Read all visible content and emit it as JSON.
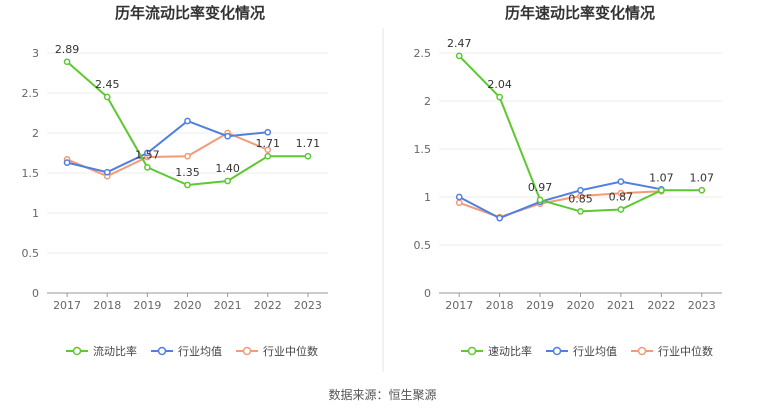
{
  "source": "数据来源：恒生聚源",
  "colors": {
    "primary": "#5DC832",
    "industry_avg": "#4F7FDF",
    "industry_median": "#F39A77"
  },
  "chart_data": [
    {
      "type": "line",
      "title": "历年流动比率变化情况",
      "categories": [
        "2017",
        "2018",
        "2019",
        "2020",
        "2021",
        "2022",
        "2023"
      ],
      "ylim": [
        0,
        3
      ],
      "yticks": [
        "0",
        "0.5",
        "1",
        "1.5",
        "2",
        "2.5",
        "3"
      ],
      "legend_position": "bottom",
      "series": [
        {
          "name": "流动比率",
          "values": [
            2.89,
            2.45,
            1.57,
            1.35,
            1.4,
            1.71,
            1.71
          ],
          "labels": [
            "2.89",
            "2.45",
            "1.57",
            "1.35",
            "1.40",
            "1.71",
            "1.71"
          ]
        },
        {
          "name": "行业均值",
          "values": [
            1.63,
            1.51,
            1.75,
            2.15,
            1.96,
            2.01,
            null
          ]
        },
        {
          "name": "行业中位数",
          "values": [
            1.67,
            1.46,
            1.7,
            1.71,
            2.0,
            1.79,
            null
          ]
        }
      ]
    },
    {
      "type": "line",
      "title": "历年速动比率变化情况",
      "categories": [
        "2017",
        "2018",
        "2019",
        "2020",
        "2021",
        "2022",
        "2023"
      ],
      "ylim": [
        0,
        2.5
      ],
      "yticks": [
        "0",
        "0.5",
        "1",
        "1.5",
        "2",
        "2.5"
      ],
      "legend_position": "bottom",
      "series": [
        {
          "name": "速动比率",
          "values": [
            2.47,
            2.04,
            0.97,
            0.85,
            0.87,
            1.07,
            1.07
          ],
          "labels": [
            "2.47",
            "2.04",
            "0.97",
            "0.85",
            "0.87",
            "1.07",
            "1.07"
          ]
        },
        {
          "name": "行业均值",
          "values": [
            1.0,
            0.78,
            0.95,
            1.07,
            1.16,
            1.08,
            null
          ]
        },
        {
          "name": "行业中位数",
          "values": [
            0.94,
            0.79,
            0.93,
            1.01,
            1.04,
            1.06,
            null
          ]
        }
      ]
    }
  ]
}
